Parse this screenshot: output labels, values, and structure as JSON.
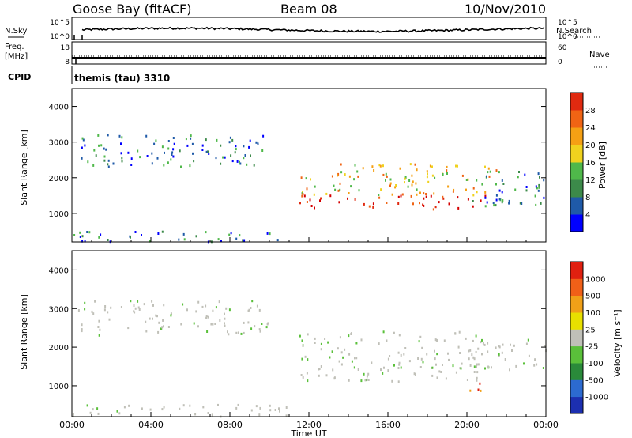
{
  "header": {
    "station": "Goose Bay (fitACF)",
    "beam": "Beam 08",
    "date": "10/Nov/2010"
  },
  "status_panels": {
    "nsky_label": "N.Sky",
    "nsearch_label": "N.Search",
    "freq_label_top": "Freq.",
    "freq_label_unit": "[MHz]",
    "nave_label": "Nave",
    "cpid_label": "CPID",
    "cpid_value": "themis (tau) 3310",
    "noise_ticks": [
      "10^5",
      "10^0"
    ],
    "noise_ticks_right": [
      "10^5",
      "10^0"
    ],
    "freq_ticks": [
      "18",
      "8"
    ],
    "nave_ticks": [
      "60",
      "0"
    ]
  },
  "colors": {
    "power_scale": [
      "#0000ff",
      "#1f5aa8",
      "#3c8a4a",
      "#4fb84a",
      "#f0d21e",
      "#f5a014",
      "#f06414",
      "#e02a10",
      "#d40000"
    ],
    "velocity_scale": [
      "#1c2fb0",
      "#2c6ad0",
      "#2a8a3a",
      "#5ac03a",
      "#c0c0b8",
      "#e8e000",
      "#f0a018",
      "#f06018",
      "#e02010"
    ],
    "ground_scatter": "#c0c0b8"
  },
  "chart_data": [
    {
      "type": "heatmap",
      "panel": "power",
      "ylabel": "Slant Range [km]",
      "colorbar_label": "Power [dB]",
      "colorbar_ticks": [
        "4",
        "8",
        "12",
        "16",
        "20",
        "24",
        "28"
      ],
      "x_ticks": [
        "00:00",
        "04:00",
        "08:00",
        "12:00",
        "16:00",
        "20:00",
        "00:00"
      ],
      "y_ticks": [
        "1000",
        "2000",
        "3000",
        "4000"
      ],
      "ylim": [
        200,
        4500
      ],
      "xlim_hours": [
        0,
        24
      ],
      "regions": [
        {
          "t0": 0.3,
          "t1": 10.0,
          "r0": 2300,
          "r1": 3200,
          "level": "low"
        },
        {
          "t0": 11.5,
          "t1": 21.0,
          "r0": 1100,
          "r1": 1500,
          "level": "high"
        },
        {
          "t0": 11.5,
          "t1": 21.5,
          "r0": 1500,
          "r1": 2400,
          "level": "mid"
        },
        {
          "t0": 20.0,
          "t1": 24.0,
          "r0": 1200,
          "r1": 2200,
          "level": "low"
        },
        {
          "t0": 0.0,
          "t1": 11.0,
          "r0": 200,
          "r1": 500,
          "level": "low"
        }
      ]
    },
    {
      "type": "heatmap",
      "panel": "velocity",
      "ylabel": "Slant Range [km]",
      "colorbar_label": "Velocity [m s⁻¹]",
      "colorbar_ticks": [
        "-1000",
        "-500",
        "-100",
        "-25",
        "25",
        "100",
        "500",
        "1000"
      ],
      "x_ticks": [
        "00:00",
        "04:00",
        "08:00",
        "12:00",
        "16:00",
        "20:00",
        "00:00"
      ],
      "y_ticks": [
        "1000",
        "2000",
        "3000",
        "4000"
      ],
      "ylim": [
        200,
        4500
      ],
      "xlim_hours": [
        0,
        24
      ],
      "xlabel": "Time UT",
      "regions": [
        {
          "t0": 0.3,
          "t1": 10.0,
          "r0": 2300,
          "r1": 3200,
          "level": "ground"
        },
        {
          "t0": 11.5,
          "t1": 21.0,
          "r0": 1100,
          "r1": 2400,
          "level": "ground"
        },
        {
          "t0": 20.0,
          "t1": 21.0,
          "r0": 700,
          "r1": 1100,
          "level": "mixed"
        },
        {
          "t0": 20.0,
          "t1": 24.0,
          "r0": 1400,
          "r1": 2200,
          "level": "ground"
        },
        {
          "t0": 0.0,
          "t1": 11.0,
          "r0": 200,
          "r1": 500,
          "level": "ground"
        }
      ]
    }
  ]
}
